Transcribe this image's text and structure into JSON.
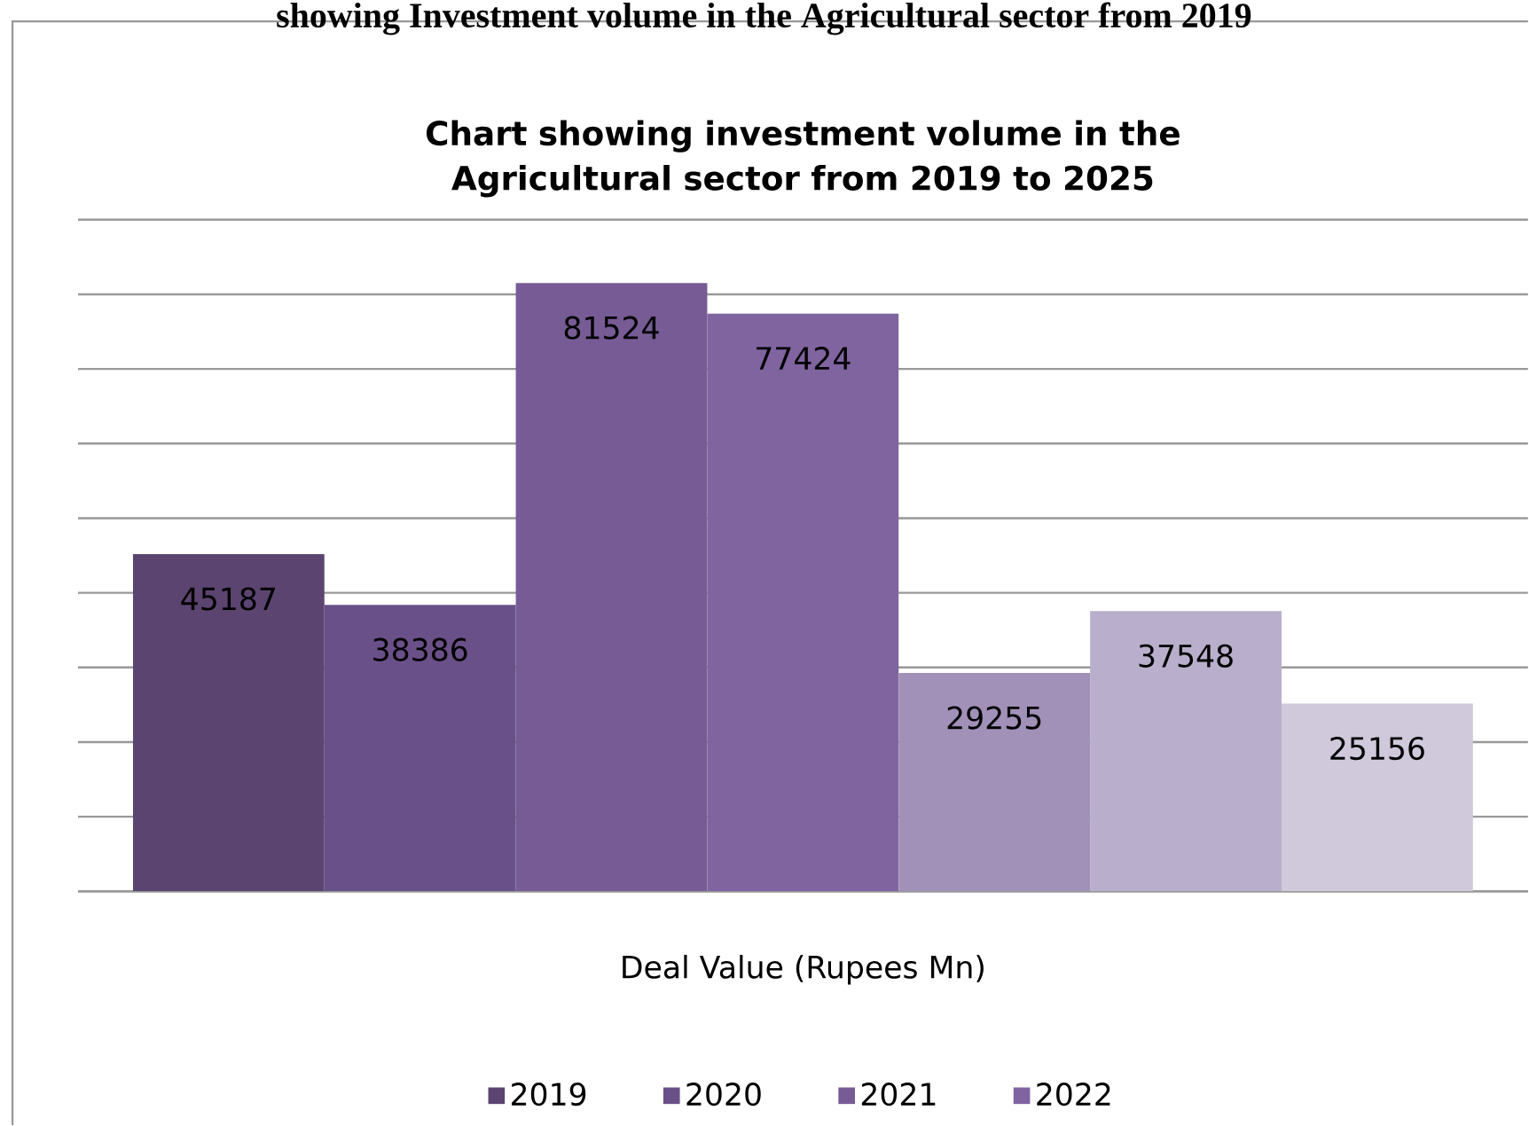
{
  "chart_data": {
    "type": "bar",
    "title": "Chart showing investment volume in the Agricultural sector from 2019 to 2025",
    "annotations": [
      "showing Investment volume in the Agricultural sector from 2019"
    ],
    "xlabel": "Deal Value (Rupees Mn)",
    "categories": [
      null
    ],
    "series": [
      {
        "name": "2019",
        "color": "#5b4570",
        "values": [
          45187
        ]
      },
      {
        "name": "2020",
        "color": "#6a5088",
        "values": [
          38386
        ]
      },
      {
        "name": "2021",
        "color": "#765b95",
        "values": [
          81524
        ]
      },
      {
        "name": "2022",
        "color": "#8064a0",
        "values": [
          77424
        ]
      },
      {
        "color": "#a191b8",
        "values": [
          29255
        ]
      },
      {
        "color": "#b9aecb",
        "values": [
          37548
        ]
      },
      {
        "color": "#d0c9dc",
        "values": [
          25156
        ]
      }
    ],
    "ylim": [
      0,
      90000
    ],
    "yticks": [
      {
        "value": 0,
        "label": null
      },
      {
        "value": 10000,
        "label": null
      },
      {
        "value": 20000,
        "label": null
      },
      {
        "value": 30000,
        "label": null
      },
      {
        "value": 40000,
        "label": null
      },
      {
        "value": 50000,
        "label": null
      },
      {
        "value": 60000,
        "label": null
      },
      {
        "value": 70000,
        "label": null
      },
      {
        "value": 80000,
        "label": null
      },
      {
        "value": 90000,
        "label": null
      }
    ],
    "grid": "y",
    "legend": "bottom",
    "data_labels": true
  }
}
